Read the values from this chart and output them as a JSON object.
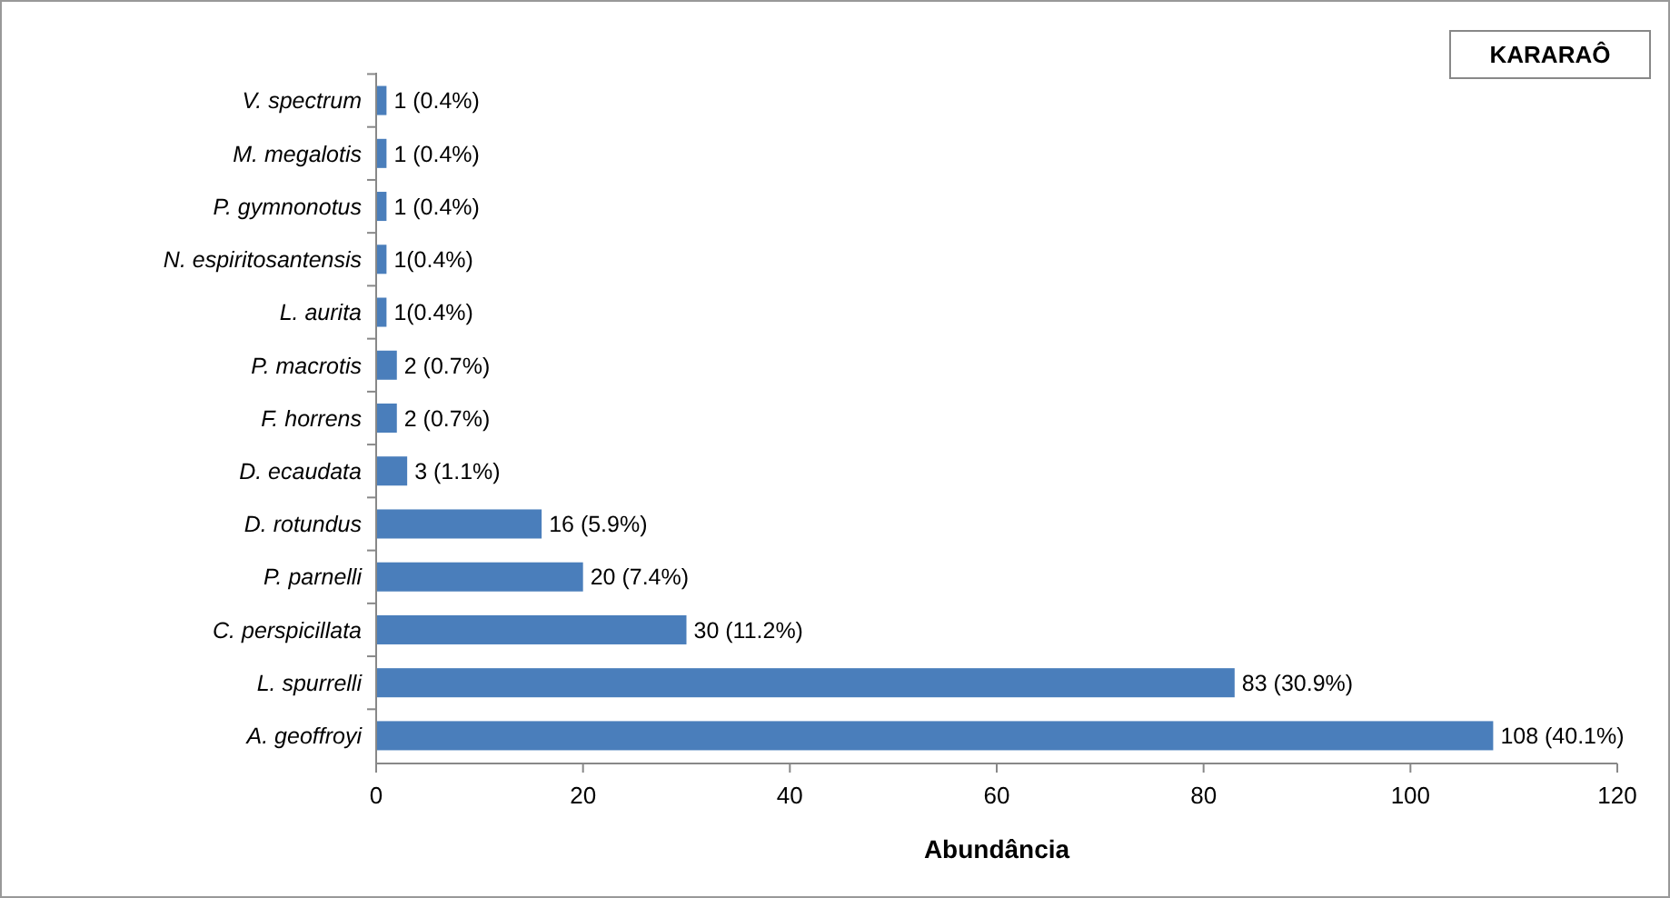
{
  "chart_data": {
    "type": "bar",
    "orientation": "horizontal",
    "title": "KARARAÔ",
    "xlabel": "Abundância",
    "categories": [
      "V. spectrum",
      "M. megalotis",
      "P. gymnonotus",
      "N. espiritosantensis",
      "L. aurita",
      "P. macrotis",
      "F. horrens",
      "D. ecaudata",
      "D. rotundus",
      "P. parnelli",
      "C. perspicillata",
      "L. spurrelli",
      "A. geoffroyi"
    ],
    "values": [
      1,
      1,
      1,
      1,
      1,
      2,
      2,
      3,
      16,
      20,
      30,
      83,
      108
    ],
    "value_labels": [
      "1 (0.4%)",
      "1 (0.4%)",
      "1 (0.4%)",
      "1(0.4%)",
      "1(0.4%)",
      "2 (0.7%)",
      "2 (0.7%)",
      "3 (1.1%)",
      "16 (5.9%)",
      "20 (7.4%)",
      "30 (11.2%)",
      "83 (30.9%)",
      "108 (40.1%)"
    ],
    "color": "#4a7ebb",
    "xlim": [
      0,
      120
    ],
    "xticks": [
      0,
      20,
      40,
      60,
      80,
      100,
      120
    ],
    "grid": false
  }
}
